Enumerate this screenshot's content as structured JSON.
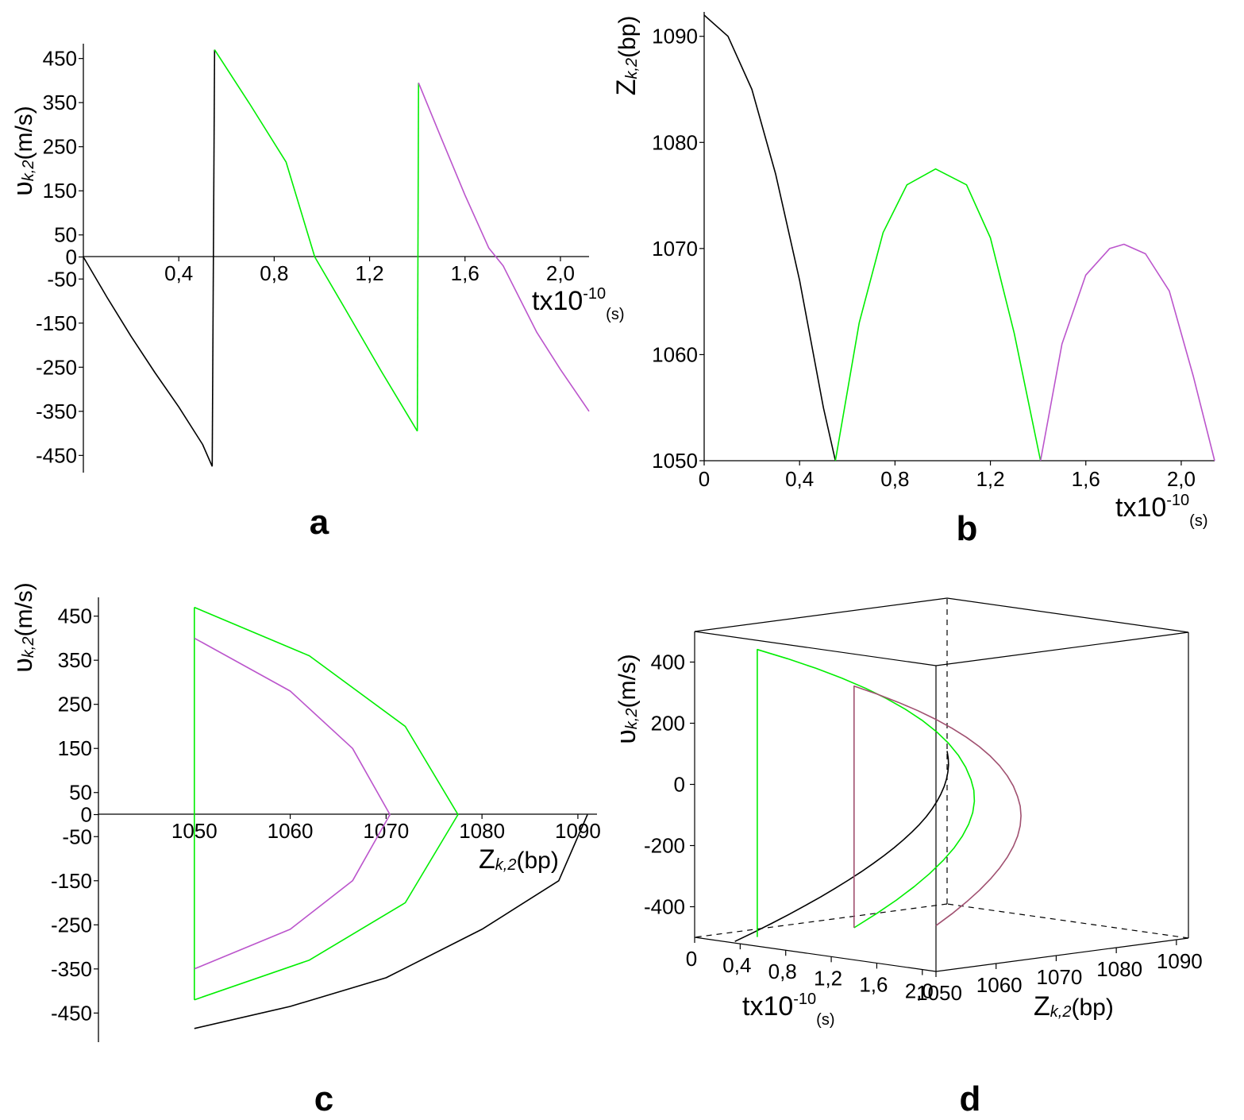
{
  "colors": {
    "black": "#000000",
    "green": "#00ee00",
    "purple": "#bb55cc",
    "maroon": "#a05070"
  },
  "panels": {
    "a": {
      "label": "a"
    },
    "b": {
      "label": "b"
    },
    "c": {
      "label": "c"
    },
    "d": {
      "label": "d"
    }
  },
  "axis_text": {
    "v_main": "υ",
    "v_sub": "k,2",
    "v_unit": "(m/s)",
    "z_main": "Z",
    "z_sub": "k,2",
    "z_unit": "(bp)",
    "t_main": "tx10",
    "t_exp": "-10",
    "t_unit": "(s)"
  },
  "chart_data": [
    {
      "panel": "a",
      "type": "line",
      "xlabel": "tx10^-10(s)",
      "ylabel": "υk,2(m/s)",
      "x_ticks": [
        "0,4",
        "0,8",
        "1,2",
        "1,6",
        "2,0"
      ],
      "x_tick_values": [
        0.4,
        0.8,
        1.2,
        1.6,
        2.0
      ],
      "y_ticks": [
        "450",
        "350",
        "250",
        "150",
        "50",
        "0",
        "-50",
        "-150",
        "-250",
        "-350",
        "-450"
      ],
      "y_tick_values": [
        450,
        350,
        250,
        150,
        50,
        0,
        -50,
        -150,
        -250,
        -350,
        -450
      ],
      "xlim": [
        0,
        2.12
      ],
      "ylim": [
        -480,
        480
      ],
      "series": [
        {
          "color": "black",
          "x": [
            0,
            0.1,
            0.2,
            0.3,
            0.4,
            0.5,
            0.54
          ],
          "y": [
            0,
            -92,
            -180,
            -262,
            -340,
            -425,
            -475
          ]
        },
        {
          "color": "black",
          "x": [
            0.54,
            0.55
          ],
          "y": [
            -475,
            470
          ]
        },
        {
          "color": "green",
          "x": [
            0.55,
            0.7,
            0.85,
            0.97,
            1.1,
            1.25,
            1.4
          ],
          "y": [
            470,
            345,
            215,
            0,
            -120,
            -260,
            -395
          ]
        },
        {
          "color": "green",
          "x": [
            1.4,
            1.405
          ],
          "y": [
            -395,
            395
          ]
        },
        {
          "color": "purple",
          "x": [
            1.405,
            1.5,
            1.6,
            1.7,
            1.76,
            1.9,
            2.0,
            2.12
          ],
          "y": [
            395,
            270,
            140,
            20,
            -20,
            -170,
            -255,
            -350
          ]
        }
      ]
    },
    {
      "panel": "b",
      "type": "line",
      "xlabel": "tx10^-10(s)",
      "ylabel": "Zk,2(bp)",
      "x_ticks": [
        "0",
        "0,4",
        "0,8",
        "1,2",
        "1,6",
        "2,0"
      ],
      "x_tick_values": [
        0,
        0.4,
        0.8,
        1.2,
        1.6,
        2.0
      ],
      "y_ticks": [
        "1090",
        "1080",
        "1070",
        "1060",
        "1050"
      ],
      "y_tick_values": [
        1090,
        1080,
        1070,
        1060,
        1050
      ],
      "xlim": [
        0,
        2.14
      ],
      "ylim": [
        1050,
        1092
      ],
      "series": [
        {
          "color": "black",
          "x": [
            0,
            0.1,
            0.2,
            0.3,
            0.4,
            0.5,
            0.55
          ],
          "y": [
            1092,
            1090,
            1085,
            1077,
            1067,
            1055,
            1050
          ]
        },
        {
          "color": "green",
          "x": [
            0.55,
            0.65,
            0.75,
            0.85,
            0.97,
            1.1,
            1.2,
            1.3,
            1.41
          ],
          "y": [
            1050,
            1063,
            1071.5,
            1076,
            1077.5,
            1076,
            1071,
            1062,
            1050
          ]
        },
        {
          "color": "purple",
          "x": [
            1.41,
            1.5,
            1.6,
            1.7,
            1.76,
            1.85,
            1.95,
            2.05,
            2.14
          ],
          "y": [
            1050,
            1061,
            1067.5,
            1070,
            1070.4,
            1069.5,
            1066,
            1058,
            1050
          ]
        }
      ]
    },
    {
      "panel": "c",
      "type": "line",
      "xlabel": "Zk,2(bp)",
      "ylabel": "υk,2(m/s)",
      "x_ticks": [
        "1050",
        "1060",
        "1070",
        "1080",
        "1090"
      ],
      "x_tick_values": [
        1050,
        1060,
        1070,
        1080,
        1090
      ],
      "y_ticks": [
        "450",
        "350",
        "250",
        "150",
        "50",
        "0",
        "-50",
        "-150",
        "-250",
        "-350",
        "-450"
      ],
      "y_tick_values": [
        450,
        350,
        250,
        150,
        50,
        0,
        -50,
        -150,
        -250,
        -350,
        -450
      ],
      "xlim": [
        1040,
        1091
      ],
      "ylim": [
        -480,
        480
      ],
      "series": [
        {
          "color": "green",
          "x": [
            1050,
            1062,
            1072,
            1077.5,
            1072,
            1062,
            1050
          ],
          "y": [
            470,
            360,
            200,
            0,
            -200,
            -330,
            -420
          ]
        },
        {
          "color": "green",
          "x": [
            1050,
            1050
          ],
          "y": [
            -420,
            470
          ]
        },
        {
          "color": "purple",
          "x": [
            1050,
            1060,
            1066.5,
            1070.4,
            1066.5,
            1060,
            1050
          ],
          "y": [
            400,
            280,
            150,
            0,
            -150,
            -260,
            -350
          ]
        },
        {
          "color": "black",
          "x": [
            1050,
            1060,
            1070,
            1080,
            1088,
            1091
          ],
          "y": [
            -485,
            -435,
            -370,
            -260,
            -150,
            0
          ]
        }
      ]
    },
    {
      "panel": "d",
      "type": "line",
      "xlabel": "tx10^-10(s)",
      "ylabel": "υk,2(m/s)",
      "zlabel": "Zk,2(bp)",
      "x_ticks": [
        "0",
        "0,4",
        "0,8",
        "1,2",
        "1,6",
        "2,0"
      ],
      "x_tick_values": [
        0,
        0.4,
        0.8,
        1.2,
        1.6,
        2.0
      ],
      "y_ticks": [
        "400",
        "200",
        "0",
        "-200",
        "-400"
      ],
      "y_tick_values": [
        400,
        200,
        0,
        -200,
        -400
      ],
      "z_ticks": [
        "1050",
        "1060",
        "1070",
        "1080",
        "1090"
      ],
      "z_tick_values": [
        1050,
        1060,
        1070,
        1080,
        1090
      ],
      "series": [
        {
          "color": "black",
          "t": [
            0,
            0.2,
            0.4,
            0.55
          ],
          "z": [
            1092,
            1085,
            1067,
            1050
          ],
          "v": [
            0,
            -180,
            -340,
            -475
          ]
        },
        {
          "color": "green",
          "t": [
            0.55,
            0.97,
            1.4
          ],
          "z": [
            1050,
            1077.5,
            1050
          ],
          "v": [
            470,
            0,
            -395
          ]
        },
        {
          "color": "maroon",
          "t": [
            1.4,
            1.76,
            2.12
          ],
          "z": [
            1050,
            1070.4,
            1050
          ],
          "v": [
            395,
            0,
            -350
          ]
        }
      ]
    }
  ]
}
